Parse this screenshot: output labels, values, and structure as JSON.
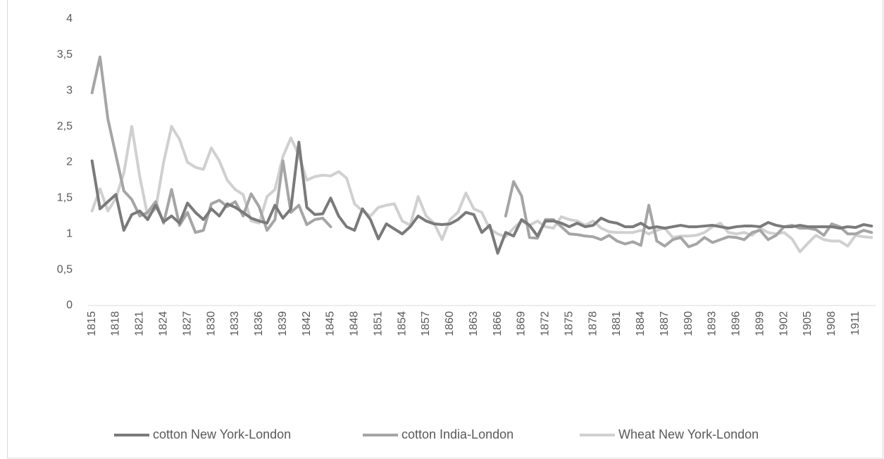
{
  "chart_data": {
    "type": "line",
    "categories": [
      "1815",
      null,
      null,
      "1818",
      null,
      null,
      "1821",
      null,
      null,
      "1824",
      null,
      null,
      "1827",
      null,
      null,
      "1830",
      null,
      null,
      "1833",
      null,
      null,
      "1836",
      null,
      null,
      "1839",
      null,
      null,
      "1842",
      null,
      null,
      "1845",
      null,
      null,
      "1848",
      null,
      null,
      "1851",
      null,
      null,
      "1854",
      null,
      null,
      "1857",
      null,
      null,
      "1860",
      null,
      null,
      "1863",
      null,
      null,
      "1866",
      null,
      null,
      "1869",
      null,
      null,
      "1872",
      null,
      null,
      "1875",
      null,
      null,
      "1878",
      null,
      null,
      "1881",
      null,
      null,
      "1884",
      null,
      null,
      "1887",
      null,
      null,
      "1890",
      null,
      null,
      "1893",
      null,
      null,
      "1896",
      null,
      null,
      "1899",
      null,
      null,
      "1902",
      null,
      null,
      "1905",
      null,
      null,
      "1908",
      null,
      null,
      "1911",
      null,
      null
    ],
    "series": [
      {
        "name": "cotton New York-London",
        "color": "#7a7a7a",
        "values": [
          2.02,
          1.35,
          1.45,
          1.55,
          1.05,
          1.27,
          1.32,
          1.2,
          1.4,
          1.17,
          1.25,
          1.15,
          1.43,
          1.3,
          1.2,
          1.35,
          1.25,
          1.42,
          1.37,
          1.3,
          1.22,
          1.18,
          1.15,
          1.4,
          1.22,
          1.35,
          2.28,
          1.37,
          1.27,
          1.28,
          1.5,
          1.25,
          1.1,
          1.05,
          1.35,
          1.2,
          0.93,
          1.14,
          1.07,
          1.0,
          1.1,
          1.25,
          1.18,
          1.14,
          1.13,
          1.14,
          1.2,
          1.3,
          1.27,
          1.02,
          1.12,
          0.73,
          1.02,
          0.97,
          1.2,
          1.12,
          0.97,
          1.18,
          1.18,
          1.15,
          1.1,
          1.15,
          1.1,
          1.12,
          1.22,
          1.17,
          1.15,
          1.1,
          1.1,
          1.15,
          1.08,
          1.1,
          1.08,
          1.1,
          1.12,
          1.1,
          1.1,
          1.11,
          1.12,
          1.1,
          1.08,
          1.1,
          1.11,
          1.11,
          1.1,
          1.16,
          1.12,
          1.1,
          1.1,
          1.12,
          1.1,
          1.1,
          1.1,
          1.1,
          1.08,
          1.1,
          1.09,
          1.13,
          1.11
        ]
      },
      {
        "name": "cotton India-London",
        "color": "#a5a5a5",
        "values": [
          2.97,
          3.47,
          2.6,
          2.1,
          1.6,
          1.48,
          1.25,
          1.3,
          1.45,
          1.15,
          1.62,
          1.12,
          1.3,
          1.02,
          1.05,
          1.42,
          1.47,
          1.38,
          1.45,
          1.25,
          1.56,
          1.38,
          1.05,
          1.2,
          2.02,
          1.3,
          1.4,
          1.13,
          1.2,
          1.22,
          1.1,
          null,
          null,
          null,
          null,
          null,
          null,
          null,
          null,
          null,
          null,
          null,
          null,
          null,
          null,
          null,
          null,
          null,
          null,
          null,
          null,
          null,
          1.25,
          1.73,
          1.53,
          0.95,
          0.94,
          1.2,
          1.2,
          1.1,
          1.0,
          0.99,
          0.97,
          0.96,
          0.92,
          0.98,
          0.9,
          0.86,
          0.89,
          0.84,
          1.4,
          0.9,
          0.83,
          0.92,
          0.95,
          0.82,
          0.86,
          0.95,
          0.88,
          0.92,
          0.96,
          0.95,
          0.92,
          1.02,
          1.05,
          0.92,
          0.98,
          1.1,
          1.12,
          1.08,
          1.08,
          1.06,
          0.98,
          1.14,
          1.1,
          1.0,
          1.0,
          1.05,
          1.02
        ]
      },
      {
        "name": "Wheat New York-London",
        "color": "#d0d0d0",
        "values": [
          1.32,
          1.63,
          1.32,
          1.5,
          1.85,
          2.5,
          1.8,
          1.25,
          1.35,
          2.0,
          2.5,
          2.32,
          2.0,
          1.93,
          1.9,
          2.2,
          2.02,
          1.75,
          1.62,
          1.55,
          1.18,
          1.15,
          1.52,
          1.62,
          2.08,
          2.34,
          2.1,
          1.75,
          1.8,
          1.82,
          1.81,
          1.87,
          1.78,
          1.42,
          1.32,
          1.25,
          1.37,
          1.4,
          1.42,
          1.18,
          1.12,
          1.52,
          1.25,
          1.15,
          0.92,
          1.2,
          1.3,
          1.57,
          1.35,
          1.3,
          1.07,
          1.0,
          0.96,
          1.08,
          1.18,
          1.12,
          1.18,
          1.1,
          1.08,
          1.24,
          1.2,
          1.18,
          1.12,
          1.18,
          1.08,
          1.03,
          1.02,
          1.02,
          1.02,
          1.05,
          1.0,
          1.05,
          1.08,
          0.95,
          0.97,
          0.97,
          0.98,
          1.02,
          1.1,
          1.15,
          1.02,
          1.0,
          1.02,
          0.98,
          1.08,
          1.02,
          1.0,
          1.02,
          0.93,
          0.75,
          0.87,
          0.98,
          0.92,
          0.9,
          0.9,
          0.83,
          0.98,
          0.96,
          0.95
        ]
      }
    ],
    "ylim": [
      0,
      4
    ],
    "yticks": [
      0,
      {
        "value": 0.5,
        "label": "0,5"
      },
      1,
      {
        "value": 1.5,
        "label": "1,5"
      },
      2,
      {
        "value": 2.5,
        "label": "2,5"
      },
      3,
      {
        "value": 3.5,
        "label": "3,5"
      },
      4
    ],
    "grid": false,
    "legend": "bottom"
  }
}
